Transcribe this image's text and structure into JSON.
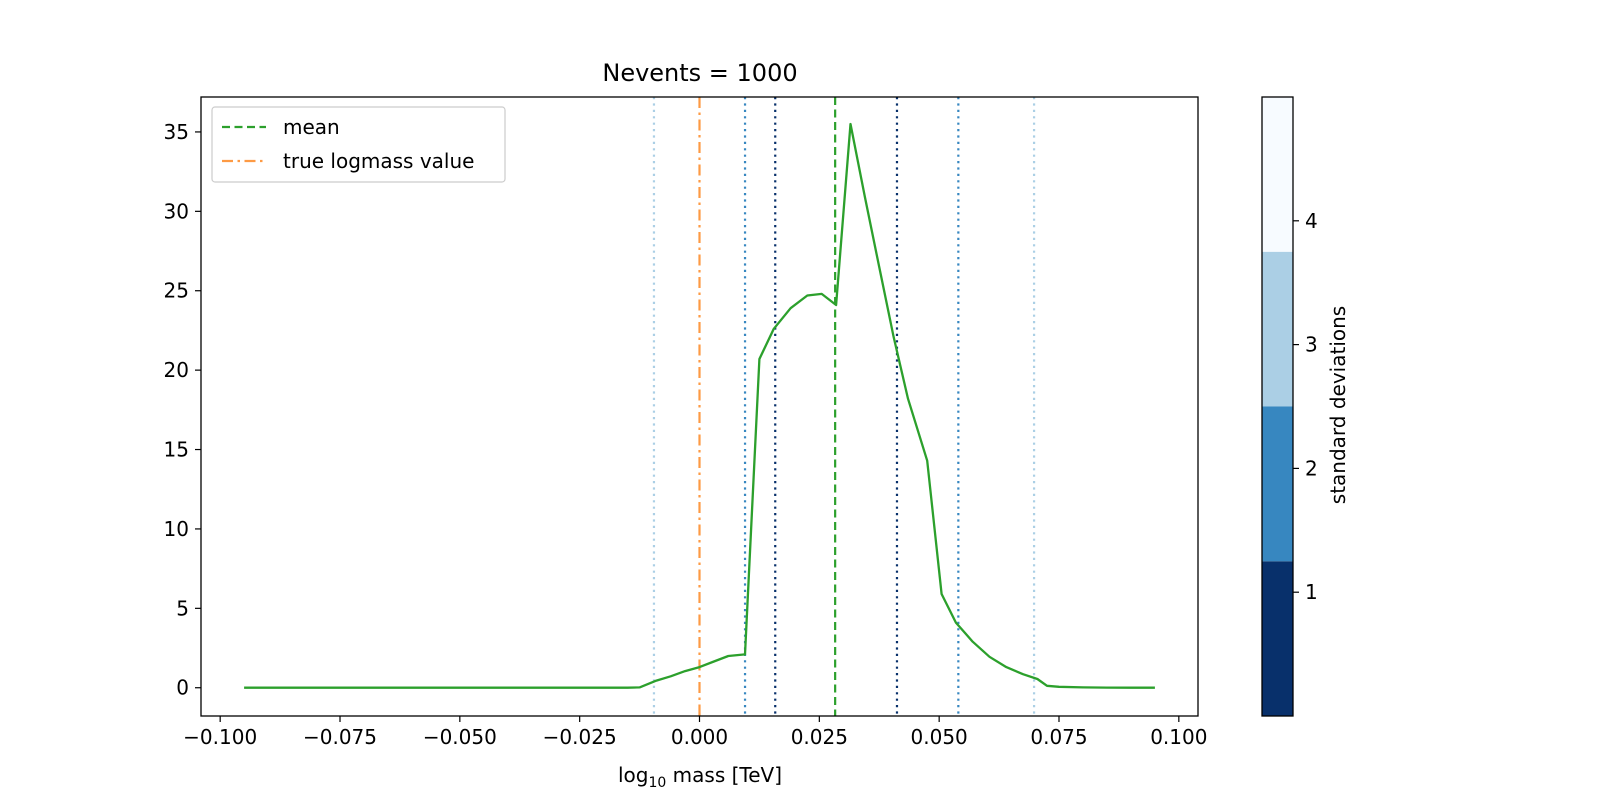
{
  "chart_data": {
    "type": "line",
    "title": "Nevents = 1000",
    "xlabel": "log₁₀ mass [TeV]",
    "ylabel": "",
    "xlim": [
      -0.104,
      0.104
    ],
    "ylim": [
      -1.78,
      37.2
    ],
    "xticks": [
      -0.1,
      -0.075,
      -0.05,
      -0.025,
      0.0,
      0.025,
      0.05,
      0.075,
      0.1
    ],
    "xtick_labels": [
      "−0.100",
      "−0.075",
      "−0.050",
      "−0.025",
      "0.000",
      "0.025",
      "0.050",
      "0.075",
      "0.100"
    ],
    "yticks": [
      0,
      5,
      10,
      15,
      20,
      25,
      30,
      35
    ],
    "ytick_labels": [
      "0",
      "5",
      "10",
      "15",
      "20",
      "25",
      "30",
      "35"
    ],
    "grid": false,
    "legend_position": "top-left",
    "legend": [
      {
        "label": "mean",
        "color": "#2ca02c",
        "style": "dashed"
      },
      {
        "label": "true logmass value",
        "color": "#fd9a44",
        "style": "dashdot"
      }
    ],
    "series": [
      {
        "color": "#2ca02c",
        "x": [
          -0.095,
          -0.09,
          -0.085,
          -0.08,
          -0.075,
          -0.07,
          -0.065,
          -0.06,
          -0.055,
          -0.05,
          -0.045,
          -0.04,
          -0.035,
          -0.03,
          -0.025,
          -0.02,
          -0.015,
          -0.0125,
          -0.009,
          -0.006,
          -0.003,
          0.0,
          0.003,
          0.006,
          0.0095,
          0.0125,
          0.0155,
          0.019,
          0.0225,
          0.0255,
          0.0285,
          0.0315,
          0.0345,
          0.0375,
          0.0405,
          0.0435,
          0.0475,
          0.0505,
          0.0535,
          0.057,
          0.0605,
          0.064,
          0.0675,
          0.0705,
          0.0725,
          0.075,
          0.08,
          0.085,
          0.09,
          0.095
        ],
        "y": [
          0,
          0,
          0,
          0,
          0,
          0,
          0,
          0,
          0,
          0,
          0,
          0,
          0,
          0,
          0,
          0,
          0,
          0.02,
          0.45,
          0.72,
          1.05,
          1.3,
          1.65,
          2.0,
          2.1,
          20.7,
          22.6,
          23.9,
          24.7,
          24.8,
          24.1,
          35.5,
          30.9,
          26.5,
          22.1,
          18.2,
          14.3,
          5.9,
          4.1,
          2.9,
          1.95,
          1.3,
          0.85,
          0.55,
          0.12,
          0.06,
          0.02,
          0.01,
          0.0,
          0.0
        ]
      }
    ],
    "vlines": [
      {
        "x": -0.0095,
        "color": "#abcfe5",
        "style": "dotted",
        "sigma": 3
      },
      {
        "x": 0.0,
        "color": "#fd9a44",
        "style": "dashdot",
        "role": "true logmass value"
      },
      {
        "x": 0.0095,
        "color": "#3787c0",
        "style": "dotted",
        "sigma": 2
      },
      {
        "x": 0.0158,
        "color": "#08306b",
        "style": "dotted",
        "sigma": 1
      },
      {
        "x": 0.0283,
        "color": "#2ca02c",
        "style": "dashed",
        "role": "mean"
      },
      {
        "x": 0.0412,
        "color": "#08306b",
        "style": "dotted",
        "sigma": 1
      },
      {
        "x": 0.054,
        "color": "#3787c0",
        "style": "dotted",
        "sigma": 2
      },
      {
        "x": 0.0698,
        "color": "#abcfe5",
        "style": "dotted",
        "sigma": 3
      }
    ],
    "colorbar": {
      "label": "standard deviations",
      "range": [
        0,
        5
      ],
      "segments": [
        {
          "from": 0,
          "to": 1.25,
          "color": "#08306b"
        },
        {
          "from": 1.25,
          "to": 2.5,
          "color": "#3787c0"
        },
        {
          "from": 2.5,
          "to": 3.75,
          "color": "#abcfe5"
        },
        {
          "from": 3.75,
          "to": 5,
          "color": "#f7fbff"
        }
      ],
      "ticks": [
        1,
        2,
        3,
        4
      ],
      "tick_labels": [
        "1",
        "2",
        "3",
        "4"
      ]
    }
  }
}
